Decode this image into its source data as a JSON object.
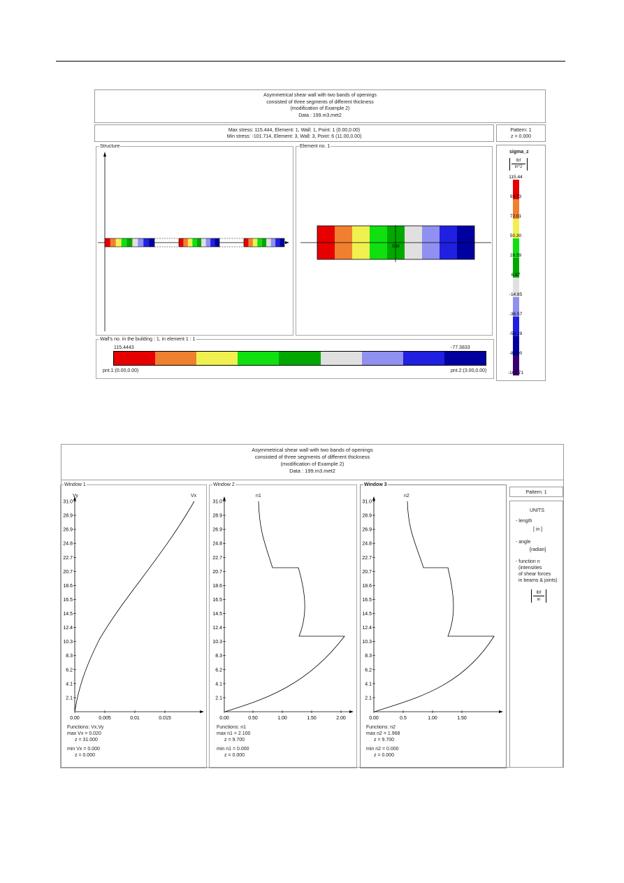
{
  "top": {
    "title_lines": [
      "Asymmetrical shear wall with two bands of openings",
      "consisted of three segments of different thickness",
      "(modification of Example 2)",
      "Data :   199.m3.met2"
    ],
    "stress_lines": [
      "Max stress: 115.444,  Element: 1,  Wall: 1,  Point: 1 (0.00,0.00)",
      "Min stress: -101.714,  Element: 3,  Wall: 3,  Point: 6 (11.00,0.00)"
    ],
    "pattern": "Pattern: 1",
    "z": "z = 0.000",
    "structure_label": "Structure",
    "element_label": "Element no. 1",
    "center_label": "S/M",
    "legend_title": "sigma_z",
    "legend_unit_num": "lbf",
    "legend_unit_den": "in^2",
    "legend_values": [
      "115.44",
      "93.73",
      "72.01",
      "50.30",
      "28.59",
      "6.87",
      "-14.85",
      "-36.57",
      "-58.29",
      "-80.00",
      "-101.71"
    ],
    "legend_colors": [
      "#e60000",
      "#f08030",
      "#f0f050",
      "#10e010",
      "#00a800",
      "#e0e0e0",
      "#9090f0",
      "#2020e0",
      "#0000a0",
      "#3a0070"
    ],
    "wall_label": "Wall's no. in the building :  1,   in element 1 :  1",
    "wall_left_value": "115.4443",
    "wall_right_value": "-77.3833",
    "wall_pnt_left": "pnt.1:(0.00,0.00)",
    "wall_pnt_right": "pnt.2:(3.00,0.00)",
    "wall_colors": [
      "#e60000",
      "#f08030",
      "#f0f050",
      "#10e010",
      "#00a800",
      "#e0e0e0",
      "#9090f0",
      "#2020e0",
      "#0000a0"
    ]
  },
  "bottom": {
    "title_lines": [
      "Asymmetrical shear wall with two bands of openings",
      "consisted of three segments of different thickness",
      "(modification of Example 2)",
      "Data :   199.m3.met2"
    ],
    "window_labels": [
      "Window 1",
      "Window 2",
      "Window 3"
    ],
    "y_ticks": [
      "31.0",
      "28.9",
      "26.9",
      "24.8",
      "22.7",
      "20.7",
      "18.6",
      "16.5",
      "14.5",
      "12.4",
      "10.3",
      "8.3",
      "6.2",
      "4.1",
      "2.1"
    ],
    "pattern": "Pattern: 1",
    "units_title": "UNITS",
    "units_length": "- length",
    "units_length_val": "[ in ]",
    "units_angle": "- angle",
    "units_angle_val": "[radian]",
    "units_func": [
      "- function n",
      "(intensities",
      "of shear forces",
      "in beams & joints)"
    ],
    "units_func_num": "lbf",
    "units_func_den": "in",
    "charts": [
      {
        "curve_label_left": "Vy",
        "curve_label_right": "Vx",
        "x_ticks": [
          "0.00",
          "0.005",
          "0.01",
          "0.015"
        ],
        "functions": "Functions: Vx,Vy",
        "max_line": "max Vx = 0.020",
        "max_z": "z = 31.000",
        "min_line": "min Vx = 0.000",
        "min_z": "z = 0.000"
      },
      {
        "curve_label": "n1",
        "x_ticks": [
          "0.00",
          "0.50",
          "1.00",
          "1.50",
          "2.00"
        ],
        "functions": "Functions: n1",
        "max_line": "max n1 = 2.100",
        "max_z": "z = 9.700",
        "min_line": "min n1 = 0.000",
        "min_z": "z = 0.000"
      },
      {
        "curve_label": "n2",
        "x_ticks": [
          "0.00",
          "0.5",
          "1.00",
          "1.50"
        ],
        "functions": "Functions: n2",
        "max_line": "max n2 = 1.968",
        "max_z": "z = 9.700",
        "min_line": "min n2 = 0.000",
        "min_z": "z = 0.000"
      }
    ]
  }
}
